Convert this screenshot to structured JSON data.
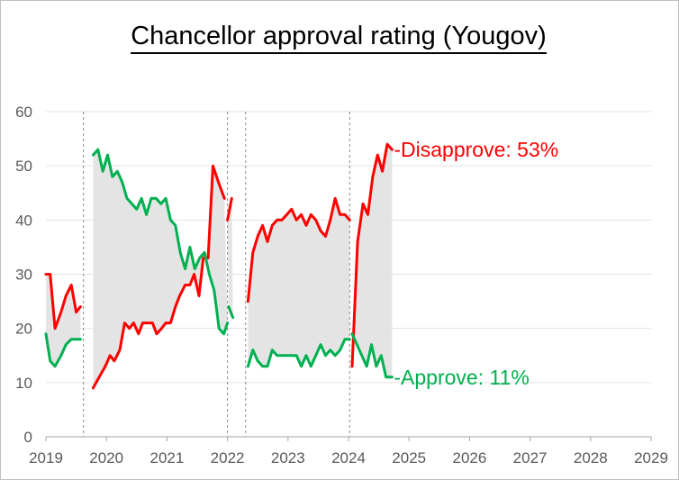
{
  "chart_data": {
    "type": "line",
    "title": "Chancellor approval rating (Yougov)",
    "xlabel": "",
    "ylabel": "",
    "xlim": [
      2019,
      2029
    ],
    "ylim": [
      0,
      60
    ],
    "x_ticks": [
      "2019",
      "2020",
      "2021",
      "2022",
      "2023",
      "2024",
      "2025",
      "2026",
      "2027",
      "2028",
      "2029"
    ],
    "y_ticks": [
      "0",
      "10",
      "20",
      "30",
      "40",
      "50",
      "60"
    ],
    "grid": "horizontal",
    "vertical_markers": [
      2019.62,
      2022.0,
      2022.3,
      2024.02
    ],
    "shaded_between_series": true,
    "series": [
      {
        "name": "Disapprove",
        "end_label": "-Disapprove: 53%",
        "color": "#ff0000",
        "segments": [
          [
            [
              2019.0,
              30
            ],
            [
              2019.07,
              30
            ],
            [
              2019.15,
              20
            ],
            [
              2019.25,
              23
            ],
            [
              2019.33,
              26
            ],
            [
              2019.42,
              28
            ],
            [
              2019.5,
              23
            ],
            [
              2019.57,
              24
            ]
          ],
          [
            [
              2019.78,
              9
            ],
            [
              2019.88,
              11
            ],
            [
              2019.98,
              13
            ],
            [
              2020.06,
              15
            ],
            [
              2020.13,
              14
            ],
            [
              2020.22,
              16
            ],
            [
              2020.3,
              21
            ],
            [
              2020.38,
              20
            ],
            [
              2020.45,
              21
            ],
            [
              2020.53,
              19
            ],
            [
              2020.6,
              21
            ],
            [
              2020.68,
              21
            ],
            [
              2020.76,
              21
            ],
            [
              2020.83,
              19
            ],
            [
              2020.91,
              20
            ],
            [
              2020.98,
              21
            ],
            [
              2021.06,
              21
            ],
            [
              2021.14,
              24
            ],
            [
              2021.21,
              26
            ],
            [
              2021.3,
              28
            ],
            [
              2021.38,
              28
            ],
            [
              2021.45,
              30
            ],
            [
              2021.53,
              26
            ],
            [
              2021.6,
              33
            ],
            [
              2021.68,
              33
            ],
            [
              2021.76,
              50
            ],
            [
              2021.85,
              47
            ],
            [
              2021.95,
              44
            ]
          ],
          [
            [
              2022.0,
              40
            ],
            [
              2022.07,
              44
            ]
          ],
          [
            [
              2022.34,
              25
            ],
            [
              2022.42,
              34
            ],
            [
              2022.5,
              37
            ],
            [
              2022.58,
              39
            ],
            [
              2022.66,
              36
            ],
            [
              2022.74,
              39
            ],
            [
              2022.82,
              40
            ],
            [
              2022.9,
              40
            ],
            [
              2022.98,
              41
            ],
            [
              2023.06,
              42
            ],
            [
              2023.14,
              40
            ],
            [
              2023.22,
              41
            ],
            [
              2023.3,
              39
            ],
            [
              2023.38,
              41
            ],
            [
              2023.46,
              40
            ],
            [
              2023.54,
              38
            ],
            [
              2023.62,
              37
            ],
            [
              2023.7,
              40
            ],
            [
              2023.78,
              44
            ],
            [
              2023.86,
              41
            ],
            [
              2023.94,
              41
            ],
            [
              2024.02,
              40
            ]
          ],
          [
            [
              2024.06,
              13
            ],
            [
              2024.15,
              36
            ],
            [
              2024.24,
              43
            ],
            [
              2024.32,
              41
            ],
            [
              2024.4,
              48
            ],
            [
              2024.48,
              52
            ],
            [
              2024.56,
              49
            ],
            [
              2024.64,
              54
            ],
            [
              2024.72,
              53
            ]
          ]
        ]
      },
      {
        "name": "Approve",
        "end_label": "-Approve: 11%",
        "color": "#00b050",
        "segments": [
          [
            [
              2019.0,
              19
            ],
            [
              2019.07,
              14
            ],
            [
              2019.15,
              13
            ],
            [
              2019.25,
              15
            ],
            [
              2019.33,
              17
            ],
            [
              2019.42,
              18
            ],
            [
              2019.5,
              18
            ],
            [
              2019.57,
              18
            ]
          ],
          [
            [
              2019.78,
              52
            ],
            [
              2019.86,
              53
            ],
            [
              2019.94,
              49
            ],
            [
              2020.02,
              52
            ],
            [
              2020.1,
              48
            ],
            [
              2020.18,
              49
            ],
            [
              2020.26,
              47
            ],
            [
              2020.34,
              44
            ],
            [
              2020.42,
              43
            ],
            [
              2020.5,
              42
            ],
            [
              2020.58,
              44
            ],
            [
              2020.66,
              41
            ],
            [
              2020.74,
              44
            ],
            [
              2020.82,
              44
            ],
            [
              2020.9,
              43
            ],
            [
              2020.98,
              44
            ],
            [
              2021.06,
              40
            ],
            [
              2021.14,
              39
            ],
            [
              2021.22,
              34
            ],
            [
              2021.3,
              31
            ],
            [
              2021.38,
              35
            ],
            [
              2021.46,
              31
            ],
            [
              2021.54,
              33
            ],
            [
              2021.62,
              34
            ],
            [
              2021.7,
              30
            ],
            [
              2021.78,
              27
            ],
            [
              2021.86,
              20
            ],
            [
              2021.94,
              19
            ],
            [
              2022.0,
              21
            ]
          ],
          [
            [
              2022.02,
              24
            ],
            [
              2022.09,
              22
            ]
          ],
          [
            [
              2022.34,
              13
            ],
            [
              2022.42,
              16
            ],
            [
              2022.5,
              14
            ],
            [
              2022.58,
              13
            ],
            [
              2022.66,
              13
            ],
            [
              2022.74,
              16
            ],
            [
              2022.82,
              15
            ],
            [
              2022.9,
              15
            ],
            [
              2022.98,
              15
            ],
            [
              2023.06,
              15
            ],
            [
              2023.14,
              15
            ],
            [
              2023.22,
              13
            ],
            [
              2023.3,
              15
            ],
            [
              2023.38,
              13
            ],
            [
              2023.46,
              15
            ],
            [
              2023.54,
              17
            ],
            [
              2023.62,
              15
            ],
            [
              2023.7,
              16
            ],
            [
              2023.78,
              15
            ],
            [
              2023.86,
              16
            ],
            [
              2023.94,
              18
            ],
            [
              2024.02,
              18
            ]
          ],
          [
            [
              2024.06,
              19
            ],
            [
              2024.14,
              17
            ],
            [
              2024.22,
              15
            ],
            [
              2024.3,
              13
            ],
            [
              2024.38,
              17
            ],
            [
              2024.46,
              13
            ],
            [
              2024.54,
              15
            ],
            [
              2024.62,
              11
            ],
            [
              2024.72,
              11
            ]
          ]
        ]
      }
    ]
  }
}
